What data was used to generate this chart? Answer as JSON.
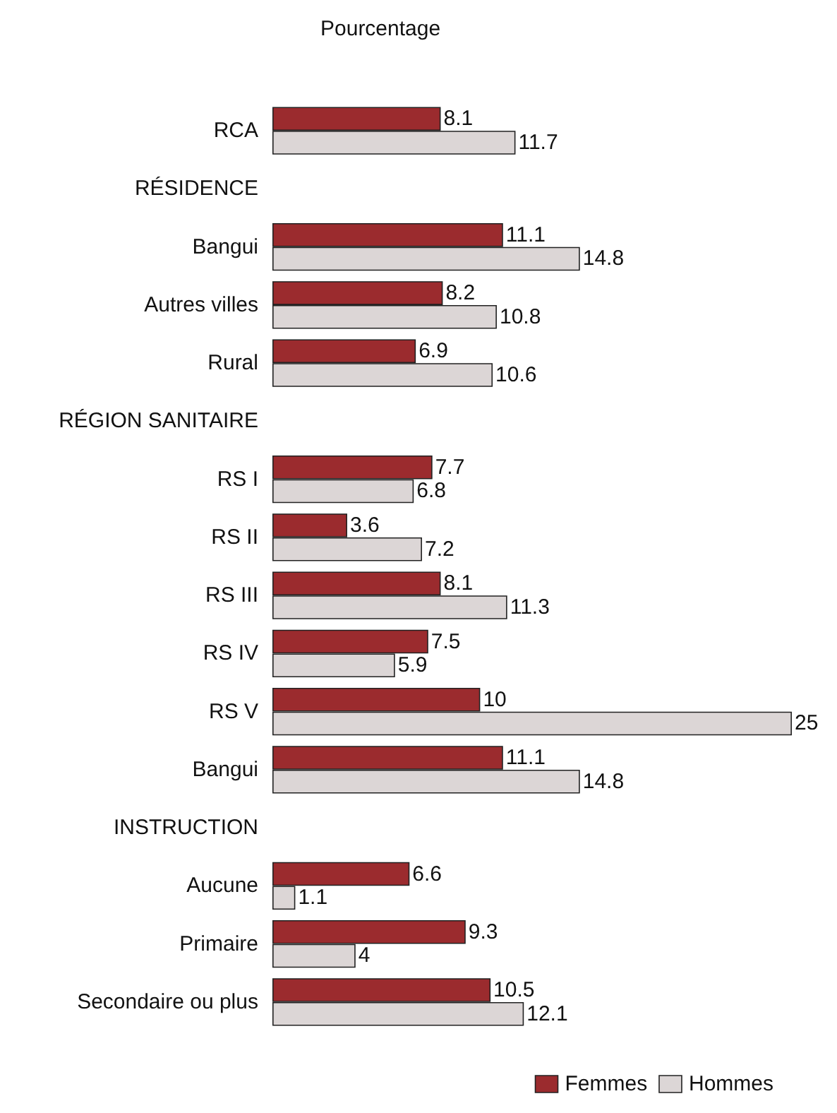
{
  "chart_data": {
    "type": "bar",
    "orientation": "horizontal",
    "title": "Pourcentage",
    "categories": [
      "RCA",
      "RÉSIDENCE",
      "Bangui",
      "Autres villes",
      "Rural",
      "RÉGION SANITAIRE",
      "RS I",
      "RS II",
      "RS III",
      "RS IV",
      "RS V",
      "Bangui",
      "INSTRUCTION",
      "Aucune",
      "Primaire",
      "Secondaire ou plus"
    ],
    "series": [
      {
        "name": "Femmes",
        "color": "#9b2b2e",
        "values": [
          8.1,
          null,
          11.1,
          8.2,
          6.9,
          null,
          7.7,
          3.6,
          8.1,
          7.5,
          10,
          11.1,
          null,
          6.6,
          9.3,
          10.5
        ]
      },
      {
        "name": "Hommes",
        "color": "#dcd6d6",
        "values": [
          11.7,
          null,
          14.8,
          10.8,
          10.6,
          null,
          6.8,
          7.2,
          11.3,
          5.9,
          25,
          14.8,
          null,
          1.1,
          4,
          12.1
        ]
      }
    ],
    "data_labels": true,
    "legend": "bottom right"
  }
}
